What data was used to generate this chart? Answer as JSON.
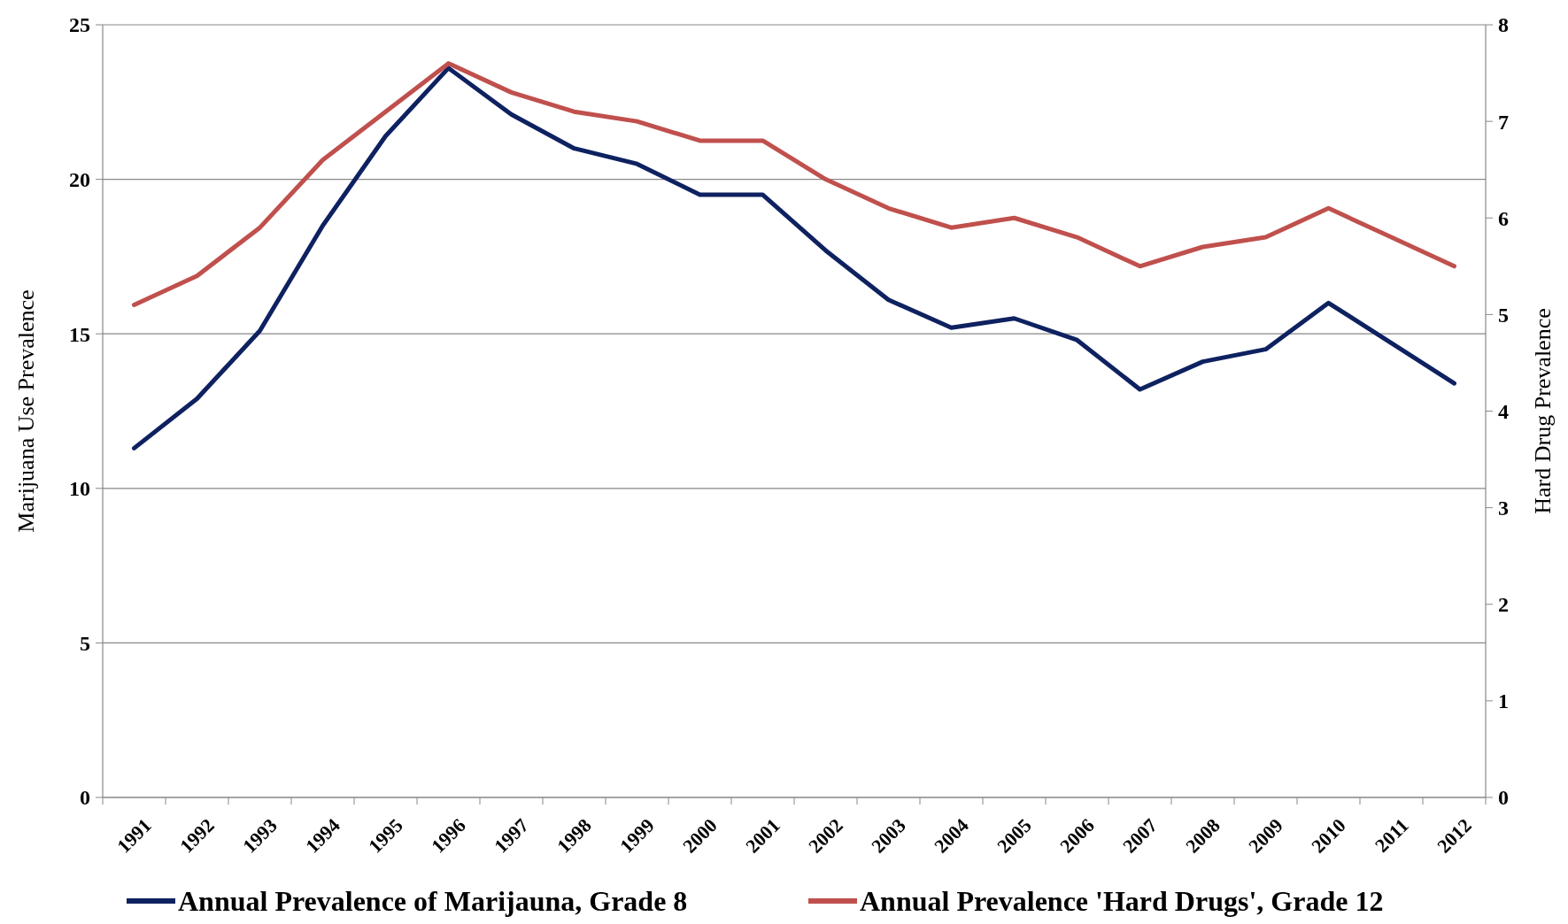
{
  "chart_data": {
    "type": "line",
    "ylabel": "Marijuana Use Prevalence",
    "y2label": "Hard Drug Prevalence",
    "categories": [
      "1991",
      "1992",
      "1993",
      "1994",
      "1995",
      "1996",
      "1997",
      "1998",
      "1999",
      "2000",
      "2001",
      "2002",
      "2003",
      "2004",
      "2005",
      "2006",
      "2007",
      "2008",
      "2009",
      "2010",
      "2011",
      "2012"
    ],
    "series": [
      {
        "name": "Annual Prevalence of Marijauna, Grade 8",
        "color": "#0e2160",
        "values": [
          11.3,
          12.9,
          15.1,
          18.5,
          21.4,
          23.6,
          22.1,
          21.0,
          20.5,
          19.5,
          19.5,
          17.7,
          16.1,
          15.2,
          15.5,
          14.8,
          13.2,
          14.1,
          14.5,
          16.0,
          14.7,
          13.4
        ]
      },
      {
        "name": "Annual Prevalence 'Hard Drugs', Grade 12",
        "color": "#c0504d",
        "axis": "y2",
        "values": [
          5.1,
          5.4,
          5.9,
          6.6,
          7.1,
          7.6,
          7.3,
          7.1,
          7.0,
          6.8,
          6.8,
          6.4,
          6.1,
          5.9,
          6.0,
          5.8,
          5.5,
          5.7,
          5.8,
          6.1,
          5.8,
          5.5
        ]
      }
    ],
    "ylim": [
      0,
      25
    ],
    "yticks": [
      0,
      5,
      10,
      15,
      20,
      25
    ],
    "y2lim": [
      0,
      8
    ],
    "y2ticks": [
      0,
      1,
      2,
      3,
      4,
      5,
      6,
      7,
      8
    ],
    "grid": "y",
    "legend": "bottom",
    "marker": "none",
    "line_style": "solid"
  }
}
